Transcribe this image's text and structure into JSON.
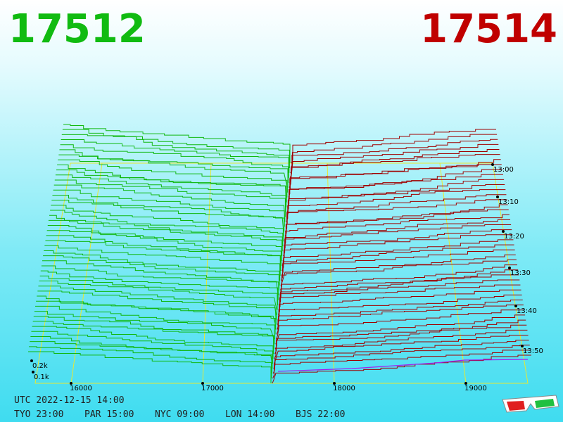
{
  "header": {
    "bid": "17512",
    "ask": "17514"
  },
  "price_axis": [
    "16000",
    "17000",
    "18000",
    "19000"
  ],
  "time_axis": [
    "13:00",
    "13:10",
    "13:20",
    "13:30",
    "13:40",
    "13:50"
  ],
  "size_axis": [
    "0.2k",
    "0.1k"
  ],
  "footer": {
    "utc": "UTC 2022-12-15 14:00",
    "zones": [
      "TYO 23:00",
      "PAR 15:00",
      "NYC 09:00",
      "LON 14:00",
      "BJS 22:00"
    ]
  }
}
